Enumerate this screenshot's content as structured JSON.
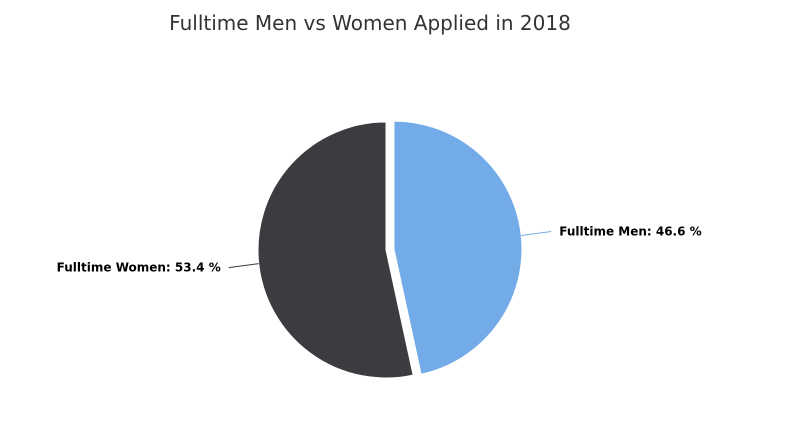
{
  "chart_data": {
    "type": "pie",
    "title": "Fulltime Men vs Women Applied in 2018",
    "slices": [
      {
        "name": "Fulltime Men",
        "value": 46.6,
        "color": "#72abe8",
        "label": "Fulltime Men: 46.6 %"
      },
      {
        "name": "Fulltime Women",
        "value": 53.4,
        "color": "#3b3b40",
        "label": "Fulltime Women: 53.4 %"
      }
    ],
    "selected_slice": "Fulltime Men"
  }
}
